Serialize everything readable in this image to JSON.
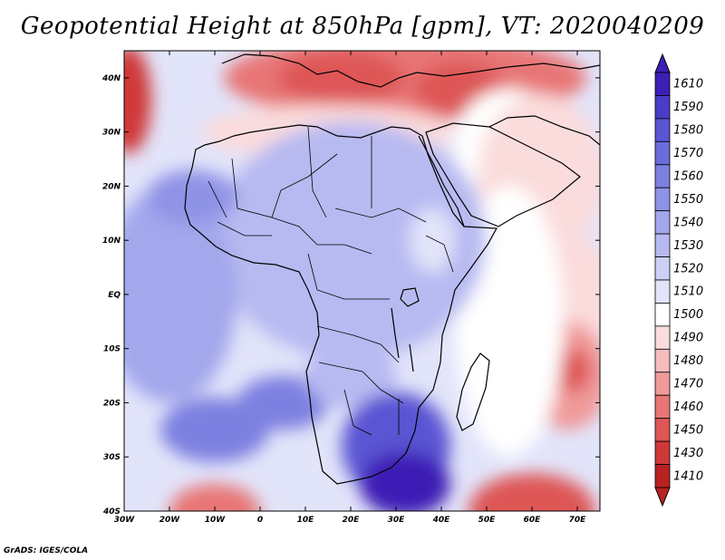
{
  "title": "Geopotential Height at 850hPa [gpm], VT: 2020040209",
  "credit": "GrADS: IGES/COLA",
  "map": {
    "lon_range": [
      -30,
      75
    ],
    "lat_range": [
      -40,
      45
    ],
    "lat_ticks": [
      {
        "value": 40,
        "label": "40N"
      },
      {
        "value": 30,
        "label": "30N"
      },
      {
        "value": 20,
        "label": "20N"
      },
      {
        "value": 10,
        "label": "10N"
      },
      {
        "value": 0,
        "label": "EQ"
      },
      {
        "value": -10,
        "label": "10S"
      },
      {
        "value": -20,
        "label": "20S"
      },
      {
        "value": -30,
        "label": "30S"
      },
      {
        "value": -40,
        "label": "40S"
      }
    ],
    "lon_ticks": [
      {
        "value": -30,
        "label": "30W"
      },
      {
        "value": -20,
        "label": "20W"
      },
      {
        "value": -10,
        "label": "10W"
      },
      {
        "value": 0,
        "label": "0"
      },
      {
        "value": 10,
        "label": "10E"
      },
      {
        "value": 20,
        "label": "20E"
      },
      {
        "value": 30,
        "label": "30E"
      },
      {
        "value": 40,
        "label": "40E"
      },
      {
        "value": 50,
        "label": "50E"
      },
      {
        "value": 60,
        "label": "60E"
      },
      {
        "value": 70,
        "label": "70E"
      }
    ]
  },
  "colorbar": {
    "levels": [
      "1610",
      "1590",
      "1580",
      "1570",
      "1560",
      "1550",
      "1540",
      "1530",
      "1520",
      "1510",
      "1500",
      "1490",
      "1480",
      "1470",
      "1460",
      "1450",
      "1430",
      "1410"
    ],
    "colors": [
      "#3d1fb5",
      "#4a3cc8",
      "#5a55d3",
      "#6a6cdb",
      "#7d80e0",
      "#8f93e6",
      "#a3a7ec",
      "#b7baf1",
      "#cccff6",
      "#e2e4fa",
      "#ffffff",
      "#fbdcdc",
      "#f6bcbc",
      "#f09a9a",
      "#e87676",
      "#de5656",
      "#cf3838",
      "#b82222"
    ]
  },
  "field_blobs": [
    {
      "lon": -29,
      "lat": 36,
      "rx": 5,
      "ry": 10,
      "level": 1430
    },
    {
      "lon": 32,
      "lat": 40,
      "rx": 40,
      "ry": 8,
      "level": 1460
    },
    {
      "lon": 18,
      "lat": 40,
      "rx": 14,
      "ry": 5,
      "level": 1440
    },
    {
      "lon": 44,
      "lat": 38,
      "rx": 10,
      "ry": 5,
      "level": 1440
    },
    {
      "lon": 15,
      "lat": 30,
      "rx": 28,
      "ry": 5,
      "level": 1490
    },
    {
      "lon": 55,
      "lat": 28,
      "rx": 12,
      "ry": 10,
      "level": 1500
    },
    {
      "lon": 62,
      "lat": 22,
      "rx": 14,
      "ry": 15,
      "level": 1490
    },
    {
      "lon": 65,
      "lat": 0,
      "rx": 14,
      "ry": 12,
      "level": 1490
    },
    {
      "lon": 68,
      "lat": -15,
      "rx": 9,
      "ry": 10,
      "level": 1470
    },
    {
      "lon": 69,
      "lat": -14,
      "rx": 4,
      "ry": 4,
      "level": 1450
    },
    {
      "lon": 55,
      "lat": -5,
      "rx": 12,
      "ry": 25,
      "level": 1500
    },
    {
      "lon": 60,
      "lat": -40,
      "rx": 14,
      "ry": 7,
      "level": 1450
    },
    {
      "lon": -10,
      "lat": -40,
      "rx": 10,
      "ry": 5,
      "level": 1460
    },
    {
      "lon": 20,
      "lat": 10,
      "rx": 30,
      "ry": 22,
      "level": 1530
    },
    {
      "lon": -20,
      "lat": 0,
      "rx": 15,
      "ry": 20,
      "level": 1540
    },
    {
      "lon": -15,
      "lat": 18,
      "rx": 10,
      "ry": 5,
      "level": 1550
    },
    {
      "lon": -10,
      "lat": -25,
      "rx": 12,
      "ry": 6,
      "level": 1560
    },
    {
      "lon": 5,
      "lat": -20,
      "rx": 10,
      "ry": 5,
      "level": 1560
    },
    {
      "lon": 20,
      "lat": -15,
      "rx": 10,
      "ry": 6,
      "level": 1530
    },
    {
      "lon": 30,
      "lat": -28,
      "rx": 12,
      "ry": 10,
      "level": 1580
    },
    {
      "lon": 32,
      "lat": -35,
      "rx": 10,
      "ry": 6,
      "level": 1600
    },
    {
      "lon": 38,
      "lat": 10,
      "rx": 5,
      "ry": 6,
      "level": 1510
    }
  ]
}
